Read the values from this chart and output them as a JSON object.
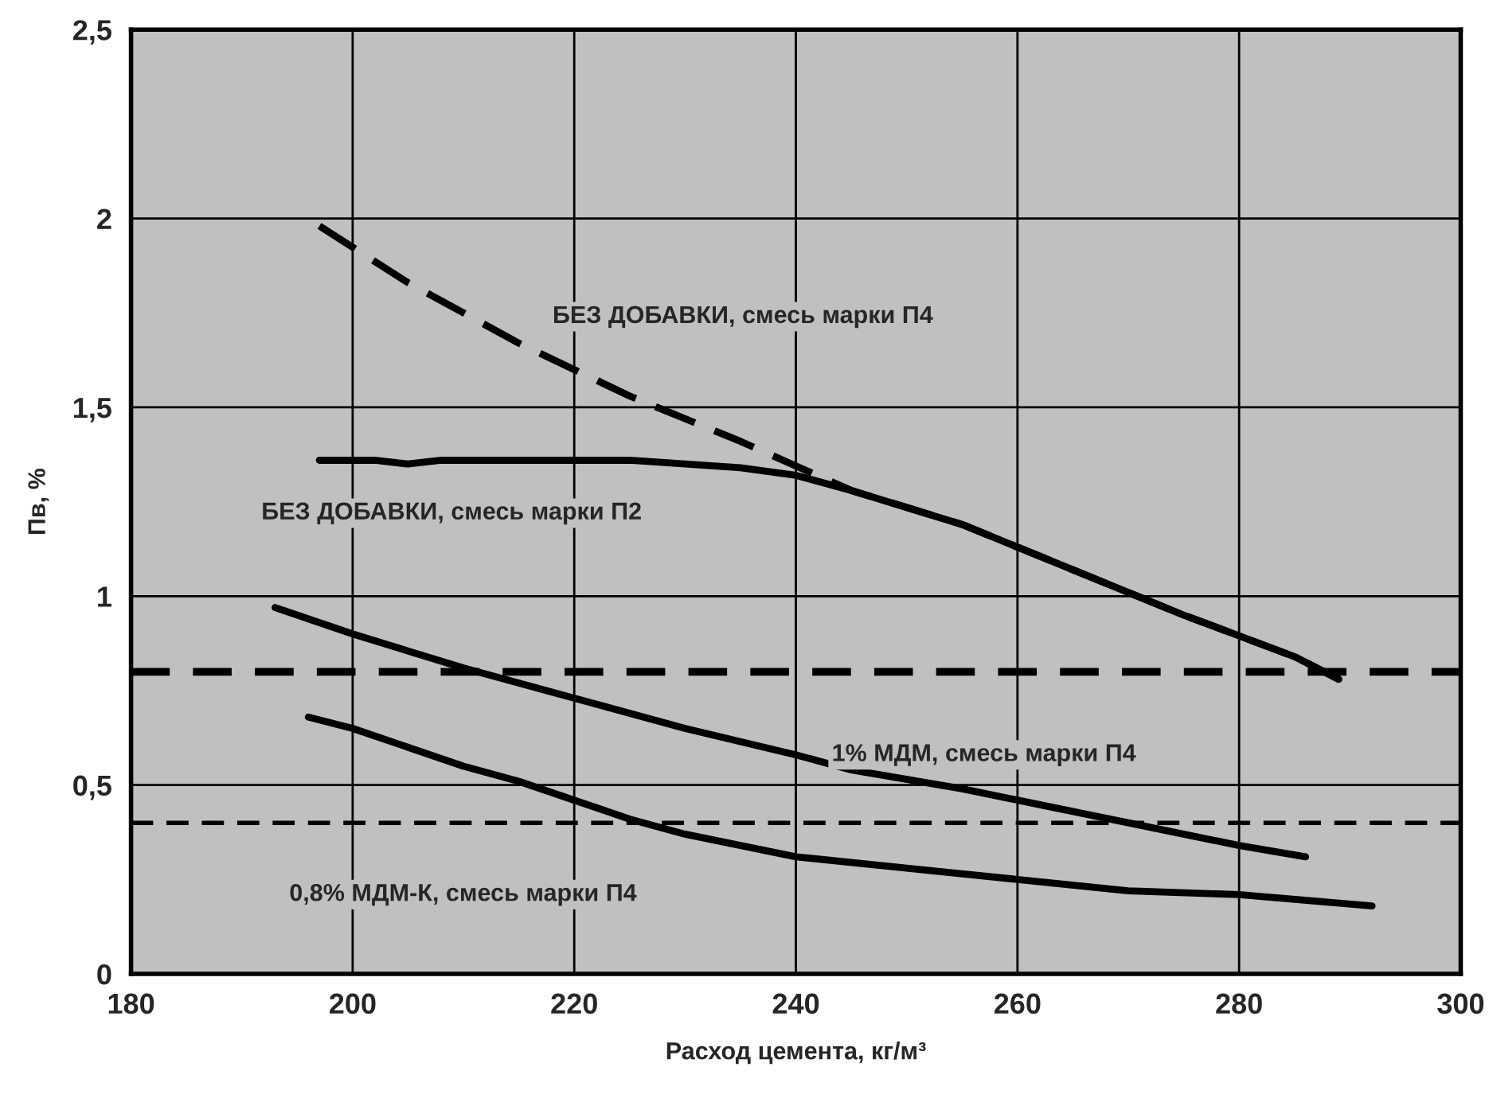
{
  "chart_data": {
    "type": "line",
    "xlabel": "Расход цемента, кг/м³",
    "ylabel": "Пв, %",
    "xlim": [
      180,
      300
    ],
    "xticks": [
      180,
      200,
      220,
      240,
      260,
      280,
      300
    ],
    "ylim": [
      0,
      2.5
    ],
    "yticks": [
      0,
      {
        "value": 0.5,
        "label": "0,5"
      },
      1,
      {
        "value": 1.5,
        "label": "1,5"
      },
      2,
      {
        "value": 2.5,
        "label": "2,5"
      }
    ],
    "grid": true,
    "marker": "none",
    "series": [
      {
        "color": "#000000",
        "line_style": "dashed",
        "x": [
          197,
          205,
          215,
          225,
          235,
          245,
          255,
          265,
          275,
          285,
          289
        ],
        "values": [
          1.98,
          1.83,
          1.67,
          1.53,
          1.41,
          1.28,
          1.19,
          1.07,
          0.95,
          0.84,
          0.78
        ]
      },
      {
        "color": "#000000",
        "line_style": "solid",
        "x": [
          197,
          202,
          205,
          208,
          215,
          225,
          230,
          235,
          240,
          245,
          255,
          265,
          275,
          285,
          289
        ],
        "values": [
          1.36,
          1.36,
          1.35,
          1.36,
          1.36,
          1.36,
          1.35,
          1.34,
          1.32,
          1.28,
          1.19,
          1.07,
          0.95,
          0.84,
          0.78
        ]
      },
      {
        "color": "#000000",
        "line_style": "solid",
        "x": [
          193,
          200,
          210,
          220,
          230,
          240,
          245,
          255,
          260,
          265,
          270,
          280,
          286
        ],
        "values": [
          0.97,
          0.9,
          0.81,
          0.73,
          0.65,
          0.58,
          0.54,
          0.49,
          0.46,
          0.43,
          0.4,
          0.34,
          0.31
        ]
      },
      {
        "color": "#000000",
        "line_style": "solid",
        "x": [
          196,
          200,
          210,
          215,
          220,
          225,
          230,
          240,
          250,
          260,
          270,
          280,
          292
        ],
        "values": [
          0.68,
          0.65,
          0.55,
          0.51,
          0.46,
          0.41,
          0.37,
          0.31,
          0.28,
          0.25,
          0.22,
          0.21,
          0.18
        ]
      }
    ],
    "ref_lines": [
      {
        "axis": "y",
        "value": 0.8,
        "color": "#000000",
        "line_style": "dashed"
      },
      {
        "axis": "y",
        "value": 0.4,
        "color": "#000000",
        "line_style": "dashed"
      }
    ],
    "annotations": [
      "БЕЗ ДОБАВКИ, смесь марки П4",
      "БЕЗ ДОБАВКИ, смесь марки П2",
      "1% МДМ, смесь марки П4",
      "0,8% МДМ-К, смесь марки П4"
    ]
  }
}
